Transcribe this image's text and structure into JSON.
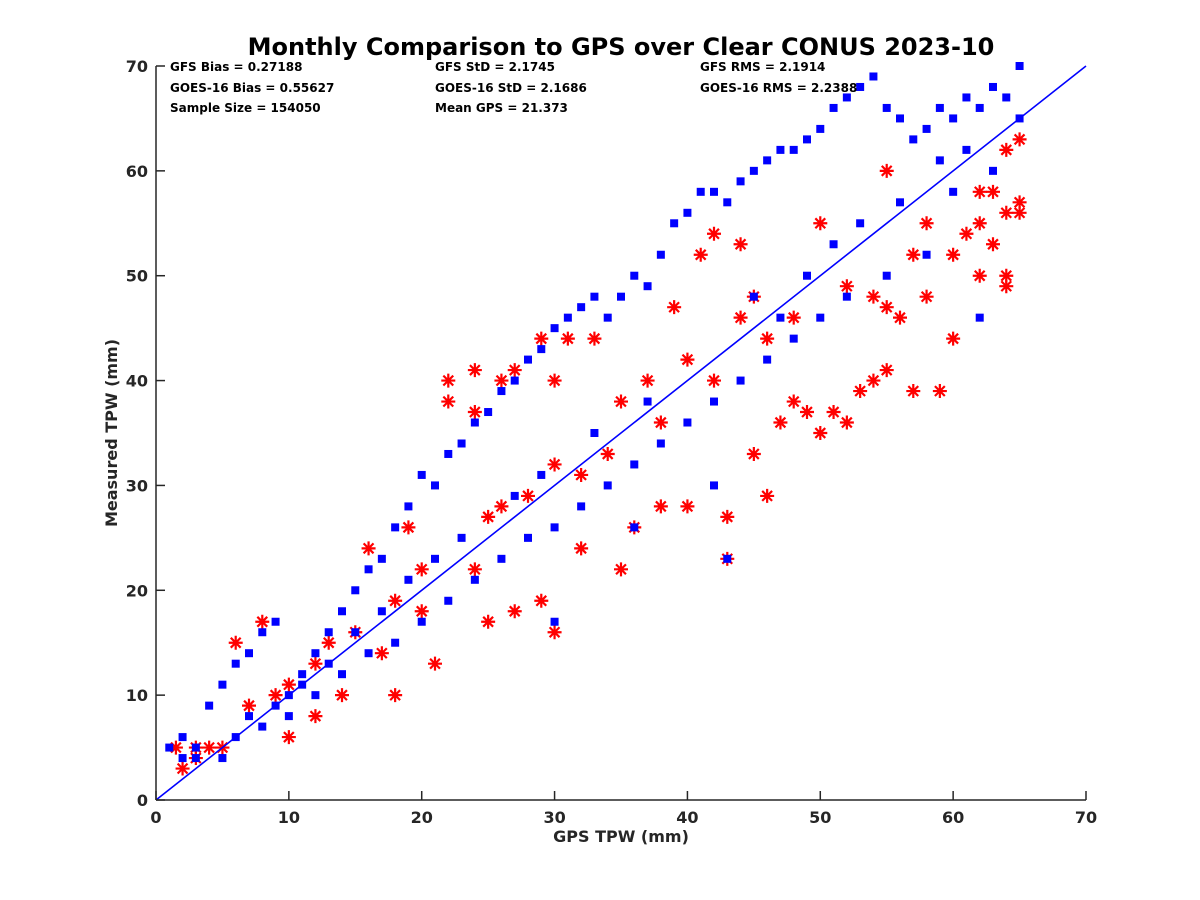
{
  "chart_data": {
    "type": "scatter",
    "title": "Monthly Comparison to GPS over Clear CONUS 2023-10",
    "xlabel": "GPS TPW (mm)",
    "ylabel": "Measured TPW (mm)",
    "xlim": [
      0,
      70
    ],
    "ylim": [
      0,
      70
    ],
    "xticks": [
      "0",
      "10",
      "20",
      "30",
      "40",
      "50",
      "60",
      "70"
    ],
    "yticks": [
      "0",
      "10",
      "20",
      "30",
      "40",
      "50",
      "60",
      "70"
    ],
    "grid": false,
    "reference_line": {
      "from": [
        0,
        0
      ],
      "to": [
        70,
        70
      ],
      "color": "#0000ff"
    },
    "stats": [
      "GFS Bias = 0.27188",
      "GOES-16 Bias = 0.55627",
      "Sample Size = 154050",
      "GFS StD = 2.1745",
      "GOES-16 StD = 2.1686",
      "Mean GPS = 21.373",
      "GFS RMS = 2.1914",
      "GOES-16 RMS = 2.2388"
    ],
    "series": [
      {
        "marker": "asterisk",
        "color": "#ff0000",
        "points": [
          [
            1.5,
            5
          ],
          [
            2,
            3
          ],
          [
            3,
            4
          ],
          [
            6,
            15
          ],
          [
            8,
            17
          ],
          [
            10,
            6
          ],
          [
            12,
            8
          ],
          [
            14,
            10
          ],
          [
            16,
            24
          ],
          [
            18,
            10
          ],
          [
            19,
            26
          ],
          [
            21,
            13
          ],
          [
            22,
            38
          ],
          [
            22,
            40
          ],
          [
            24,
            41
          ],
          [
            24,
            37
          ],
          [
            25,
            17
          ],
          [
            26,
            40
          ],
          [
            27,
            18
          ],
          [
            27,
            41
          ],
          [
            29,
            44
          ],
          [
            29,
            19
          ],
          [
            30,
            16
          ],
          [
            30,
            40
          ],
          [
            31,
            44
          ],
          [
            32,
            24
          ],
          [
            33,
            44
          ],
          [
            35,
            22
          ],
          [
            36,
            26
          ],
          [
            38,
            28
          ],
          [
            39,
            47
          ],
          [
            40,
            28
          ],
          [
            41,
            52
          ],
          [
            42,
            54
          ],
          [
            43,
            23
          ],
          [
            43,
            27
          ],
          [
            44,
            53
          ],
          [
            45,
            33
          ],
          [
            46,
            29
          ],
          [
            47,
            36
          ],
          [
            48,
            38
          ],
          [
            49,
            37
          ],
          [
            50,
            35
          ],
          [
            51,
            37
          ],
          [
            52,
            36
          ],
          [
            53,
            39
          ],
          [
            54,
            40
          ],
          [
            55,
            41
          ],
          [
            56,
            46
          ],
          [
            57,
            39
          ],
          [
            58,
            48
          ],
          [
            59,
            39
          ],
          [
            60,
            44
          ],
          [
            60,
            52
          ],
          [
            61,
            54
          ],
          [
            62,
            50
          ],
          [
            63,
            53
          ],
          [
            64,
            50
          ],
          [
            64,
            62
          ],
          [
            65,
            57
          ],
          [
            65,
            63
          ],
          [
            55,
            60
          ],
          [
            50,
            55
          ],
          [
            45,
            48
          ],
          [
            40,
            42
          ],
          [
            35,
            38
          ],
          [
            30,
            32
          ],
          [
            25,
            27
          ],
          [
            20,
            22
          ],
          [
            15,
            16
          ],
          [
            10,
            11
          ],
          [
            5,
            5
          ],
          [
            32,
            31
          ],
          [
            28,
            29
          ],
          [
            18,
            19
          ],
          [
            12,
            13
          ],
          [
            38,
            36
          ],
          [
            42,
            40
          ],
          [
            48,
            46
          ],
          [
            52,
            49
          ],
          [
            58,
            55
          ],
          [
            62,
            58
          ],
          [
            64,
            56
          ],
          [
            63,
            58
          ],
          [
            57,
            52
          ],
          [
            46,
            44
          ],
          [
            44,
            46
          ],
          [
            37,
            40
          ],
          [
            34,
            33
          ],
          [
            26,
            28
          ],
          [
            24,
            22
          ],
          [
            20,
            18
          ],
          [
            17,
            14
          ],
          [
            13,
            15
          ],
          [
            9,
            10
          ],
          [
            7,
            9
          ],
          [
            4,
            5
          ],
          [
            3,
            5
          ],
          [
            55,
            47
          ],
          [
            54,
            48
          ],
          [
            62,
            55
          ],
          [
            64,
            49
          ],
          [
            65,
            56
          ]
        ]
      },
      {
        "marker": "square",
        "color": "#0000ff",
        "points": [
          [
            1,
            5
          ],
          [
            2,
            6
          ],
          [
            3,
            5
          ],
          [
            4,
            9
          ],
          [
            5,
            11
          ],
          [
            6,
            13
          ],
          [
            7,
            14
          ],
          [
            8,
            16
          ],
          [
            9,
            17
          ],
          [
            10,
            10
          ],
          [
            11,
            12
          ],
          [
            12,
            14
          ],
          [
            13,
            16
          ],
          [
            14,
            18
          ],
          [
            15,
            20
          ],
          [
            16,
            22
          ],
          [
            17,
            23
          ],
          [
            18,
            26
          ],
          [
            19,
            28
          ],
          [
            20,
            31
          ],
          [
            21,
            30
          ],
          [
            22,
            33
          ],
          [
            23,
            34
          ],
          [
            24,
            36
          ],
          [
            25,
            37
          ],
          [
            26,
            39
          ],
          [
            27,
            40
          ],
          [
            28,
            42
          ],
          [
            29,
            43
          ],
          [
            30,
            45
          ],
          [
            31,
            46
          ],
          [
            32,
            47
          ],
          [
            33,
            48
          ],
          [
            34,
            46
          ],
          [
            35,
            48
          ],
          [
            36,
            50
          ],
          [
            37,
            49
          ],
          [
            38,
            52
          ],
          [
            39,
            55
          ],
          [
            40,
            56
          ],
          [
            41,
            58
          ],
          [
            42,
            58
          ],
          [
            43,
            57
          ],
          [
            44,
            59
          ],
          [
            45,
            60
          ],
          [
            46,
            61
          ],
          [
            47,
            62
          ],
          [
            48,
            62
          ],
          [
            49,
            63
          ],
          [
            50,
            64
          ],
          [
            51,
            66
          ],
          [
            52,
            67
          ],
          [
            53,
            68
          ],
          [
            54,
            69
          ],
          [
            55,
            66
          ],
          [
            56,
            65
          ],
          [
            57,
            63
          ],
          [
            58,
            64
          ],
          [
            59,
            66
          ],
          [
            60,
            65
          ],
          [
            61,
            67
          ],
          [
            62,
            66
          ],
          [
            63,
            68
          ],
          [
            64,
            67
          ],
          [
            65,
            70
          ],
          [
            65,
            65
          ],
          [
            63,
            60
          ],
          [
            60,
            58
          ],
          [
            58,
            52
          ],
          [
            55,
            50
          ],
          [
            52,
            48
          ],
          [
            50,
            46
          ],
          [
            48,
            44
          ],
          [
            46,
            42
          ],
          [
            44,
            40
          ],
          [
            42,
            38
          ],
          [
            40,
            36
          ],
          [
            38,
            34
          ],
          [
            36,
            32
          ],
          [
            34,
            30
          ],
          [
            32,
            28
          ],
          [
            30,
            26
          ],
          [
            28,
            25
          ],
          [
            26,
            23
          ],
          [
            24,
            21
          ],
          [
            22,
            19
          ],
          [
            20,
            17
          ],
          [
            18,
            15
          ],
          [
            16,
            14
          ],
          [
            14,
            12
          ],
          [
            12,
            10
          ],
          [
            10,
            8
          ],
          [
            8,
            7
          ],
          [
            6,
            6
          ],
          [
            5,
            4
          ],
          [
            3,
            4
          ],
          [
            2,
            4
          ],
          [
            43,
            23
          ],
          [
            62,
            46
          ],
          [
            36,
            26
          ],
          [
            42,
            30
          ],
          [
            30,
            17
          ],
          [
            45,
            48
          ],
          [
            47,
            46
          ],
          [
            49,
            50
          ],
          [
            51,
            53
          ],
          [
            53,
            55
          ],
          [
            56,
            57
          ],
          [
            59,
            61
          ],
          [
            61,
            62
          ],
          [
            37,
            38
          ],
          [
            33,
            35
          ],
          [
            29,
            31
          ],
          [
            27,
            29
          ],
          [
            23,
            25
          ],
          [
            21,
            23
          ],
          [
            19,
            21
          ],
          [
            17,
            18
          ],
          [
            15,
            16
          ],
          [
            13,
            13
          ],
          [
            11,
            11
          ],
          [
            9,
            9
          ],
          [
            7,
            8
          ]
        ]
      }
    ]
  }
}
